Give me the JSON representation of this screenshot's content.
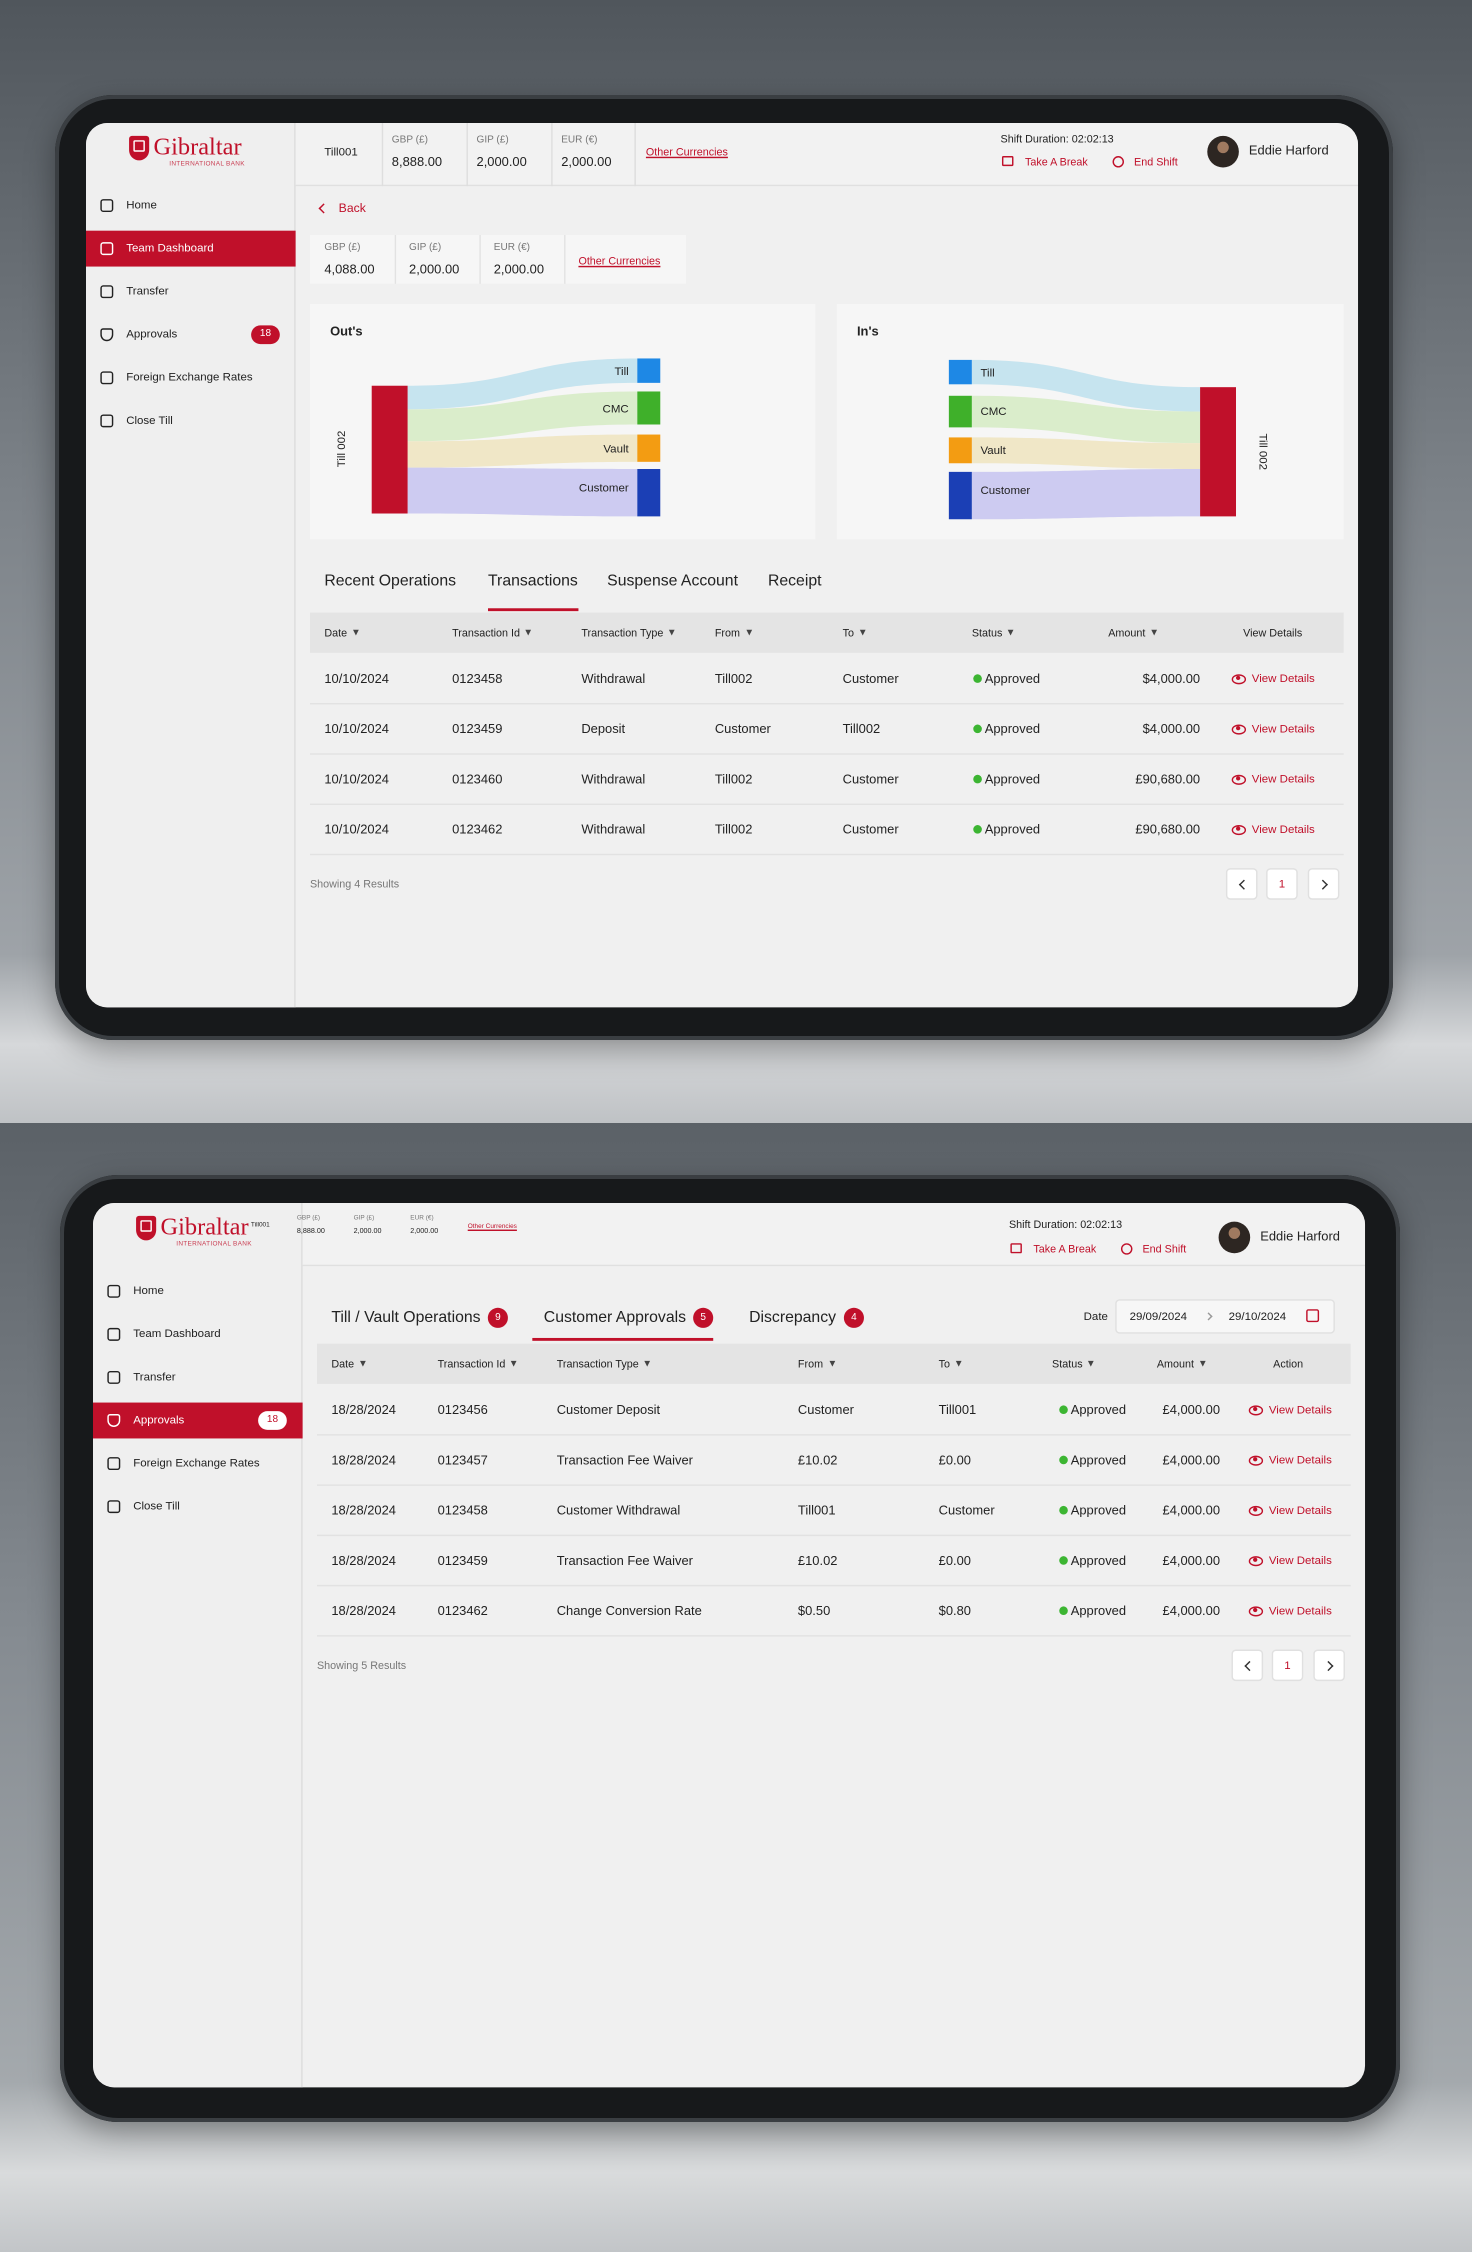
{
  "screen1": {
    "brand": {
      "name": "Gibraltar",
      "sub": "INTERNATIONAL BANK"
    },
    "header": {
      "till": "Till001",
      "balances": [
        {
          "label": "GBP (£)",
          "value": "8,888.00"
        },
        {
          "label": "GIP (£)",
          "value": "2,000.00"
        },
        {
          "label": "EUR (€)",
          "value": "2,000.00"
        }
      ],
      "other": "Other Currencies",
      "shift": "Shift Duration: 02:02:13",
      "break": "Take A Break",
      "end": "End Shift",
      "user": "Eddie Harford"
    },
    "nav": [
      {
        "label": "Home"
      },
      {
        "label": "Team Dashboard",
        "active": true
      },
      {
        "label": "Transfer"
      },
      {
        "label": "Approvals",
        "badge": "18"
      },
      {
        "label": "Foreign Exchange Rates"
      },
      {
        "label": "Close Till"
      }
    ],
    "back": "Back",
    "balances": [
      {
        "label": "GBP (£)",
        "value": "4,088.00"
      },
      {
        "label": "GIP (£)",
        "value": "2,000.00"
      },
      {
        "label": "EUR (€)",
        "value": "2,000.00"
      }
    ],
    "other": "Other Currencies",
    "outs": {
      "title": "Out's",
      "source": "Till 002",
      "nodes": [
        "Till",
        "CMC",
        "Vault",
        "Customer"
      ]
    },
    "ins": {
      "title": "In's",
      "source": "Till 002",
      "nodes": [
        "Till",
        "CMC",
        "Vault",
        "Customer"
      ]
    },
    "tabs": [
      {
        "label": "Recent Operations"
      },
      {
        "label": "Transactions",
        "active": true
      },
      {
        "label": "Suspense Account"
      },
      {
        "label": "Receipt"
      }
    ],
    "table": {
      "columns": [
        "Date",
        "Transaction Id",
        "Transaction Type",
        "From",
        "To",
        "Status",
        "Amount",
        "View Details"
      ],
      "rows": [
        [
          "10/10/2024",
          "0123458",
          "Withdrawal",
          "Till002",
          "Customer",
          "Approved",
          "$4,000.00"
        ],
        [
          "10/10/2024",
          "0123459",
          "Deposit",
          "Customer",
          "Till002",
          "Approved",
          "$4,000.00"
        ],
        [
          "10/10/2024",
          "0123460",
          "Withdrawal",
          "Till002",
          "Customer",
          "Approved",
          "£90,680.00"
        ],
        [
          "10/10/2024",
          "0123462",
          "Withdrawal",
          "Till002",
          "Customer",
          "Approved",
          "£90,680.00"
        ]
      ],
      "action": "View Details"
    },
    "showing": "Showing 4 Results",
    "page": "1"
  },
  "screen2": {
    "brand": {
      "name": "Gibraltar",
      "sub": "INTERNATIONAL BANK"
    },
    "header": {
      "till": "Till001",
      "balances": [
        {
          "label": "GBP (£)",
          "value": "8,888.00"
        },
        {
          "label": "GIP (£)",
          "value": "2,000.00"
        },
        {
          "label": "EUR (€)",
          "value": "2,000.00"
        }
      ],
      "other": "Other Currencies",
      "shift": "Shift Duration: 02:02:13",
      "break": "Take A Break",
      "end": "End Shift",
      "user": "Eddie Harford"
    },
    "nav": [
      {
        "label": "Home"
      },
      {
        "label": "Team Dashboard"
      },
      {
        "label": "Transfer"
      },
      {
        "label": "Approvals",
        "badge": "18",
        "active": true
      },
      {
        "label": "Foreign Exchange Rates"
      },
      {
        "label": "Close Till"
      }
    ],
    "tabs": [
      {
        "label": "Till / Vault Operations",
        "badge": "9"
      },
      {
        "label": "Customer Approvals",
        "badge": "5",
        "active": true
      },
      {
        "label": "Discrepancy",
        "badge": "4"
      }
    ],
    "date": {
      "label": "Date",
      "from": "29/09/2024",
      "to": "29/10/2024"
    },
    "table": {
      "columns": [
        "Date",
        "Transaction Id",
        "Transaction Type",
        "From",
        "To",
        "Status",
        "Amount",
        "Action"
      ],
      "rows": [
        [
          "18/28/2024",
          "0123456",
          "Customer Deposit",
          "Customer",
          "Till001",
          "Approved",
          "£4,000.00"
        ],
        [
          "18/28/2024",
          "0123457",
          "Transaction Fee Waiver",
          "£10.02",
          "£0.00",
          "Approved",
          "£4,000.00"
        ],
        [
          "18/28/2024",
          "0123458",
          "Customer Withdrawal",
          "Till001",
          "Customer",
          "Approved",
          "£4,000.00"
        ],
        [
          "18/28/2024",
          "0123459",
          "Transaction Fee Waiver",
          "£10.02",
          "£0.00",
          "Approved",
          "£4,000.00"
        ],
        [
          "18/28/2024",
          "0123462",
          "Change Conversion Rate",
          "$0.50",
          "$0.80",
          "Approved",
          "£4,000.00"
        ]
      ],
      "action": "View Details"
    },
    "showing": "Showing 5 Results",
    "page": "1"
  }
}
